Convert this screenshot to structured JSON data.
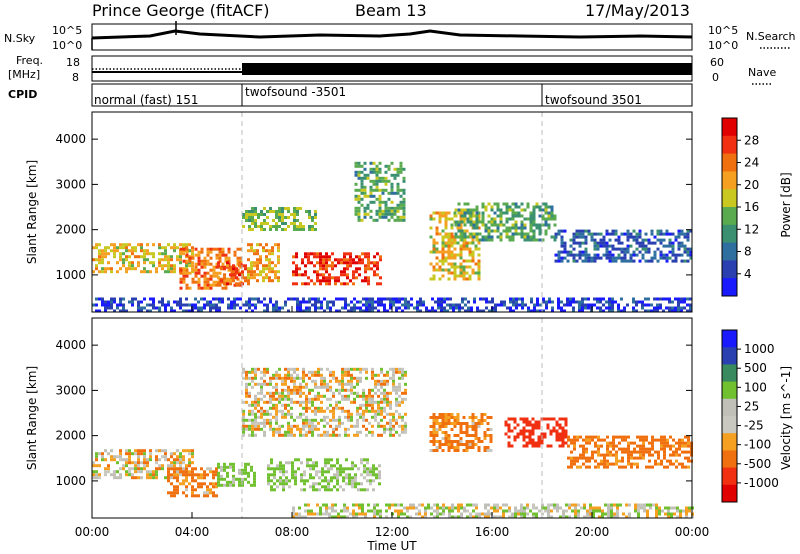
{
  "header": {
    "station": "Prince George (fitACF)",
    "beam": "Beam 13",
    "date": "17/May/2013"
  },
  "noise_panel": {
    "left_label": "N.Sky",
    "right_label": "N.Search",
    "y_ticks_left": [
      "10^5",
      "10^0"
    ],
    "y_ticks_right": [
      "10^5",
      "10^0"
    ],
    "legend_line": "dotted"
  },
  "freq_panel": {
    "left_label_1": "Freq.",
    "left_label_2": "[MHz]",
    "right_label": "Nave",
    "y_ticks_left": [
      "18",
      "8"
    ],
    "y_ticks_right": [
      "60",
      "0"
    ],
    "legend_line": "dotted"
  },
  "cpid_panel": {
    "label": "CPID",
    "segments": [
      {
        "name": "normal (fast) 151",
        "start_h": 0
      },
      {
        "name": "twofsound -3501",
        "start_h": 6
      },
      {
        "name": "twofsound 3501",
        "start_h": 18
      }
    ]
  },
  "colors": {
    "power": [
      "#1a1aff",
      "#2a3fb0",
      "#2f6fa0",
      "#3a9070",
      "#5aaa50",
      "#c8c820",
      "#f5a020",
      "#f07010",
      "#f03010",
      "#e00000"
    ],
    "velocity": [
      "#e00000",
      "#f03010",
      "#f07010",
      "#f5a020",
      "#c8c8c0",
      "#c0c0b8",
      "#70c030",
      "#3a8a60",
      "#2a3fb0",
      "#1a1aff"
    ]
  },
  "chart_data": [
    {
      "type": "heatmap",
      "name": "Power",
      "ylabel": "Slant Range [km]",
      "colorbar_label": "Power [dB]",
      "colorbar_ticks": [
        "4",
        "8",
        "12",
        "16",
        "20",
        "24",
        "28"
      ],
      "x_range_h": [
        0,
        24
      ],
      "ylim_km": [
        180,
        4600
      ],
      "y_ticks": [
        "1000",
        "2000",
        "3000",
        "4000"
      ],
      "regions": [
        {
          "h0": 0.0,
          "h1": 4.0,
          "r0": 1100,
          "r1": 1700,
          "value": 20
        },
        {
          "h0": 3.5,
          "h1": 6.0,
          "r0": 700,
          "r1": 1600,
          "value": 24
        },
        {
          "h0": 5.0,
          "h1": 6.2,
          "r0": 800,
          "r1": 1300,
          "value": 26
        },
        {
          "h0": 6.2,
          "h1": 7.5,
          "r0": 900,
          "r1": 1700,
          "value": 22
        },
        {
          "h0": 8.0,
          "h1": 11.5,
          "r0": 800,
          "r1": 1500,
          "value": 28
        },
        {
          "h0": 6.0,
          "h1": 9.0,
          "r0": 2000,
          "r1": 2500,
          "value": 16
        },
        {
          "h0": 10.5,
          "h1": 12.5,
          "r0": 2200,
          "r1": 3500,
          "value": 14
        },
        {
          "h0": 13.5,
          "h1": 15.5,
          "r0": 900,
          "r1": 2400,
          "value": 20
        },
        {
          "h0": 14.5,
          "h1": 18.5,
          "r0": 1800,
          "r1": 2600,
          "value": 14
        },
        {
          "h0": 18.5,
          "h1": 24.0,
          "r0": 1300,
          "r1": 2000,
          "value": 8
        },
        {
          "h0": 0.0,
          "h1": 24.0,
          "r0": 200,
          "r1": 500,
          "value": 6
        }
      ]
    },
    {
      "type": "heatmap",
      "name": "Velocity",
      "ylabel": "Slant Range [km]",
      "colorbar_label": "Velocity [m s^-1]",
      "colorbar_ticks": [
        "1000",
        "500",
        "100",
        "25",
        "-25",
        "-100",
        "-500",
        "-1000"
      ],
      "x_range_h": [
        0,
        24
      ],
      "ylim_km": [
        180,
        4600
      ],
      "y_ticks": [
        "1000",
        "2000",
        "3000",
        "4000"
      ],
      "x_ticks": [
        "00:00",
        "04:00",
        "08:00",
        "12:00",
        "16:00",
        "20:00",
        "00:00"
      ],
      "xlabel": "Time UT",
      "regions": [
        {
          "h0": 0.0,
          "h1": 4.0,
          "r0": 1100,
          "r1": 1700,
          "value": 0
        },
        {
          "h0": 3.0,
          "h1": 5.0,
          "r0": 700,
          "r1": 1300,
          "value": -150
        },
        {
          "h0": 5.0,
          "h1": 6.5,
          "r0": 900,
          "r1": 1400,
          "value": 200
        },
        {
          "h0": 7.0,
          "h1": 11.5,
          "r0": 800,
          "r1": 1500,
          "value": 150
        },
        {
          "h0": 6.0,
          "h1": 12.5,
          "r0": 2000,
          "r1": 3500,
          "value": 0
        },
        {
          "h0": 13.5,
          "h1": 16.0,
          "r0": 1700,
          "r1": 2500,
          "value": -150
        },
        {
          "h0": 16.5,
          "h1": 19.0,
          "r0": 1800,
          "r1": 2400,
          "value": -800
        },
        {
          "h0": 19.0,
          "h1": 24.0,
          "r0": 1300,
          "r1": 2000,
          "value": -200
        },
        {
          "h0": 8.0,
          "h1": 24.0,
          "r0": 200,
          "r1": 500,
          "value": 50
        }
      ]
    }
  ]
}
